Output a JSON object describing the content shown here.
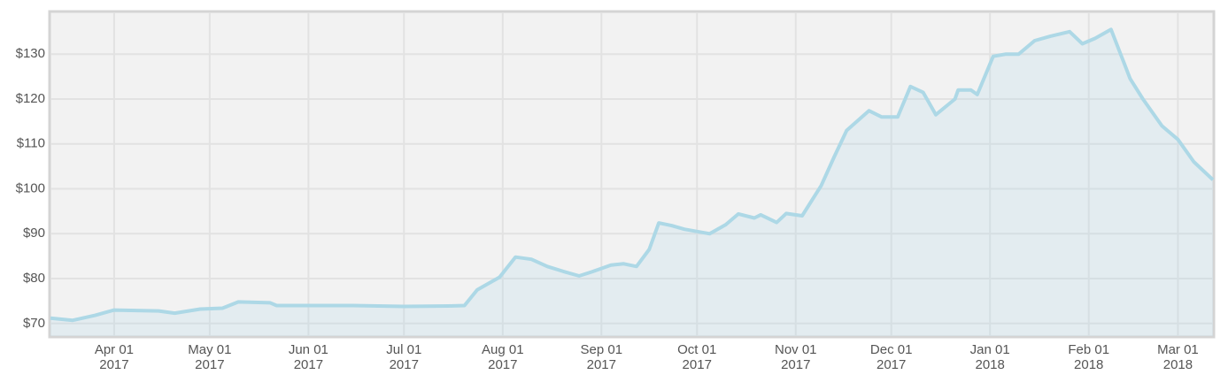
{
  "chart_data": {
    "type": "area",
    "x": [
      "2017-03-12",
      "2017-03-19",
      "2017-03-26",
      "2017-04-01",
      "2017-04-15",
      "2017-04-20",
      "2017-04-28",
      "2017-05-05",
      "2017-05-10",
      "2017-05-20",
      "2017-05-22",
      "2017-06-15",
      "2017-07-01",
      "2017-07-15",
      "2017-07-20",
      "2017-07-24",
      "2017-07-27",
      "2017-07-31",
      "2017-08-05",
      "2017-08-10",
      "2017-08-15",
      "2017-08-20",
      "2017-08-25",
      "2017-08-29",
      "2017-09-04",
      "2017-09-08",
      "2017-09-12",
      "2017-09-16",
      "2017-09-19",
      "2017-09-23",
      "2017-09-27",
      "2017-10-05",
      "2017-10-10",
      "2017-10-14",
      "2017-10-19",
      "2017-10-21",
      "2017-10-26",
      "2017-10-29",
      "2017-11-03",
      "2017-11-09",
      "2017-11-13",
      "2017-11-17",
      "2017-11-24",
      "2017-11-28",
      "2017-12-03",
      "2017-12-07",
      "2017-12-11",
      "2017-12-15",
      "2017-12-21",
      "2017-12-22",
      "2017-12-26",
      "2017-12-28",
      "2018-01-02",
      "2018-01-06",
      "2018-01-10",
      "2018-01-15",
      "2018-01-20",
      "2018-01-26",
      "2018-01-30",
      "2018-02-03",
      "2018-02-08",
      "2018-02-14",
      "2018-02-18",
      "2018-02-24",
      "2018-03-01",
      "2018-03-06",
      "2018-03-12"
    ],
    "values": [
      71.2,
      70.7,
      71.8,
      73.0,
      72.8,
      72.3,
      73.2,
      73.4,
      74.8,
      74.6,
      74.0,
      74.0,
      73.8,
      73.9,
      74.0,
      77.5,
      78.7,
      80.3,
      84.8,
      84.3,
      82.7,
      81.6,
      80.6,
      81.5,
      83.0,
      83.3,
      82.7,
      86.5,
      92.4,
      91.8,
      91.0,
      90.0,
      92.0,
      94.4,
      93.5,
      94.2,
      92.5,
      94.5,
      94.0,
      100.7,
      107.0,
      113.0,
      117.4,
      116.0,
      116.0,
      122.8,
      121.5,
      116.5,
      120.0,
      122.0,
      122.0,
      121.0,
      129.5,
      130.0,
      130.0,
      133.0,
      134.0,
      135.0,
      132.3,
      133.5,
      135.5,
      124.5,
      120.0,
      114.0,
      111.0,
      106.0,
      102.0
    ],
    "color": "#add8e6",
    "xlim": [
      "2017-03-12",
      "2018-03-12"
    ],
    "xticks": [
      {
        "value": "2017-04-01",
        "label": "Apr 01\n2017"
      },
      {
        "value": "2017-05-01",
        "label": "May 01\n2017"
      },
      {
        "value": "2017-06-01",
        "label": "Jun 01\n2017"
      },
      {
        "value": "2017-07-01",
        "label": "Jul 01\n2017"
      },
      {
        "value": "2017-08-01",
        "label": "Aug 01\n2017"
      },
      {
        "value": "2017-09-01",
        "label": "Sep 01\n2017"
      },
      {
        "value": "2017-10-01",
        "label": "Oct 01\n2017"
      },
      {
        "value": "2017-11-01",
        "label": "Nov 01\n2017"
      },
      {
        "value": "2017-12-01",
        "label": "Dec 01\n2017"
      },
      {
        "value": "2018-01-01",
        "label": "Jan 01\n2018"
      },
      {
        "value": "2018-02-01",
        "label": "Feb 01\n2018"
      },
      {
        "value": "2018-03-01",
        "label": "Mar 01\n2018"
      }
    ],
    "ylim": [
      67.2,
      139.3
    ],
    "yticks": [
      {
        "value": 70,
        "label": "$70"
      },
      {
        "value": 80,
        "label": "$80"
      },
      {
        "value": 90,
        "label": "$90"
      },
      {
        "value": 100,
        "label": "$100"
      },
      {
        "value": 110,
        "label": "$110"
      },
      {
        "value": 120,
        "label": "$120"
      },
      {
        "value": 130,
        "label": "$130"
      }
    ],
    "grid": true
  }
}
